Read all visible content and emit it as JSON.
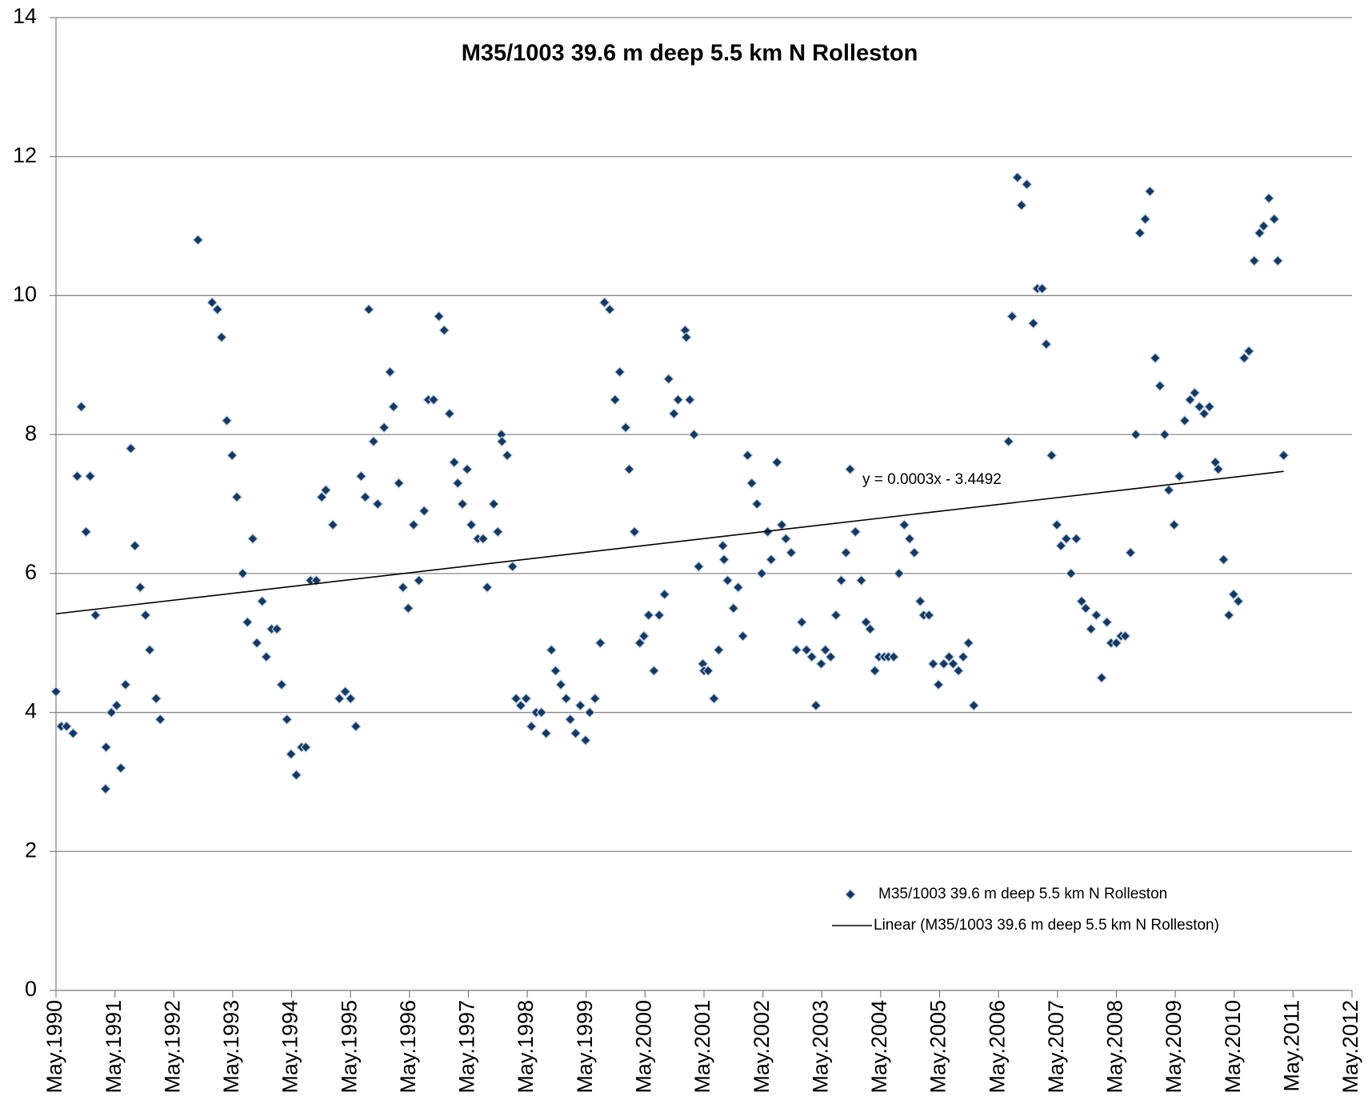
{
  "chart_data": {
    "type": "scatter",
    "title": "M35/1003   39.6 m deep   5.5 km N Rolleston",
    "annotation": "y = 0.0003x - 3.4492",
    "xlim": [
      1990.33,
      2012.33
    ],
    "xticks": [
      {
        "value": 1990.33,
        "label": "May.1990"
      },
      {
        "value": 1991.33,
        "label": "May.1991"
      },
      {
        "value": 1992.33,
        "label": "May.1992"
      },
      {
        "value": 1993.33,
        "label": "May.1993"
      },
      {
        "value": 1994.33,
        "label": "May.1994"
      },
      {
        "value": 1995.33,
        "label": "May.1995"
      },
      {
        "value": 1996.33,
        "label": "May.1996"
      },
      {
        "value": 1997.33,
        "label": "May.1997"
      },
      {
        "value": 1998.33,
        "label": "May.1998"
      },
      {
        "value": 1999.33,
        "label": "May.1999"
      },
      {
        "value": 2000.33,
        "label": "May.2000"
      },
      {
        "value": 2001.33,
        "label": "May.2001"
      },
      {
        "value": 2002.33,
        "label": "May.2002"
      },
      {
        "value": 2003.33,
        "label": "May.2003"
      },
      {
        "value": 2004.33,
        "label": "May.2004"
      },
      {
        "value": 2005.33,
        "label": "May.2005"
      },
      {
        "value": 2006.33,
        "label": "May.2006"
      },
      {
        "value": 2007.33,
        "label": "May.2007"
      },
      {
        "value": 2008.33,
        "label": "May.2008"
      },
      {
        "value": 2009.33,
        "label": "May.2009"
      },
      {
        "value": 2010.33,
        "label": "May.2010"
      },
      {
        "value": 2011.33,
        "label": "May.2011"
      },
      {
        "value": 2012.33,
        "label": "May.2012"
      }
    ],
    "ylim": [
      0,
      14
    ],
    "yticks": [
      0,
      2,
      4,
      6,
      8,
      10,
      12,
      14
    ],
    "grid": true,
    "legend": "lower right",
    "series": [
      {
        "name": "M35/1003   39.6 m deep   5.5 km N Rolleston",
        "mode": "markers",
        "color": "#17375e",
        "x": [
          1990.33,
          1990.42,
          1990.51,
          1990.62,
          1990.69,
          1990.76,
          1990.84,
          1990.91,
          1991.0,
          1991.17,
          1991.18,
          1991.27,
          1991.36,
          1991.43,
          1991.51,
          1991.6,
          1991.67,
          1991.76,
          1991.85,
          1991.92,
          1992.03,
          1992.1,
          1992.74,
          1992.98,
          1993.07,
          1993.14,
          1993.23,
          1993.32,
          1993.4,
          1993.5,
          1993.58,
          1993.67,
          1993.74,
          1993.83,
          1993.9,
          1993.99,
          1994.08,
          1994.16,
          1994.25,
          1994.32,
          1994.41,
          1994.5,
          1994.57,
          1994.65,
          1994.75,
          1994.84,
          1994.91,
          1995.03,
          1995.14,
          1995.24,
          1995.33,
          1995.42,
          1995.51,
          1995.58,
          1995.64,
          1995.72,
          1995.79,
          1995.9,
          1996.0,
          1996.06,
          1996.15,
          1996.22,
          1996.31,
          1996.4,
          1996.49,
          1996.58,
          1996.65,
          1996.74,
          1996.83,
          1996.92,
          1997.01,
          1997.09,
          1997.15,
          1997.23,
          1997.31,
          1997.38,
          1997.49,
          1997.58,
          1997.65,
          1997.76,
          1997.83,
          1997.89,
          1997.9,
          1997.99,
          1998.08,
          1998.14,
          1998.22,
          1998.31,
          1998.4,
          1998.48,
          1998.57,
          1998.65,
          1998.74,
          1998.81,
          1998.9,
          1998.99,
          1999.06,
          1999.15,
          1999.23,
          1999.32,
          1999.39,
          1999.48,
          1999.57,
          1999.64,
          1999.73,
          1999.82,
          1999.9,
          2000.0,
          2000.06,
          2000.15,
          2000.24,
          2000.31,
          2000.39,
          2000.48,
          2000.57,
          2000.66,
          2000.73,
          2000.82,
          2000.89,
          2001.01,
          2001.03,
          2001.09,
          2001.16,
          2001.24,
          2001.31,
          2001.33,
          2001.4,
          2001.5,
          2001.58,
          2001.65,
          2001.67,
          2001.73,
          2001.83,
          2001.91,
          2001.99,
          2002.07,
          2002.14,
          2002.23,
          2002.31,
          2002.41,
          2002.47,
          2002.57,
          2002.65,
          2002.72,
          2002.81,
          2002.9,
          2002.99,
          2003.07,
          2003.16,
          2003.23,
          2003.32,
          2003.39,
          2003.48,
          2003.57,
          2003.66,
          2003.74,
          2003.81,
          2003.9,
          2004.0,
          2004.08,
          2004.15,
          2004.23,
          2004.3,
          2004.39,
          2004.46,
          2004.55,
          2004.64,
          2004.73,
          2004.82,
          2004.9,
          2005.0,
          2005.06,
          2005.15,
          2005.22,
          2005.31,
          2005.4,
          2005.49,
          2005.56,
          2005.65,
          2005.73,
          2005.82,
          2005.91,
          2006.5,
          2006.56,
          2006.65,
          2006.72,
          2006.81,
          2006.92,
          2006.99,
          2007.07,
          2007.14,
          2007.23,
          2007.32,
          2007.39,
          2007.48,
          2007.56,
          2007.65,
          2007.74,
          2007.81,
          2007.9,
          2007.99,
          2008.08,
          2008.17,
          2008.24,
          2008.33,
          2008.41,
          2008.48,
          2008.57,
          2008.66,
          2008.73,
          2008.82,
          2008.9,
          2008.99,
          2009.07,
          2009.15,
          2009.22,
          2009.31,
          2009.4,
          2009.49,
          2009.58,
          2009.66,
          2009.74,
          2009.82,
          2009.91,
          2010.01,
          2010.06,
          2010.15,
          2010.24,
          2010.32,
          2010.4,
          2010.5,
          2010.58,
          2010.67,
          2010.76,
          2010.83,
          2010.92,
          2011.01,
          2011.07,
          2011.17
        ],
        "values": [
          4.3,
          3.8,
          3.8,
          3.7,
          7.4,
          8.4,
          6.6,
          7.4,
          5.4,
          2.9,
          3.5,
          4.0,
          4.1,
          3.2,
          4.4,
          7.8,
          6.4,
          5.8,
          5.4,
          4.9,
          4.2,
          3.9,
          10.8,
          9.9,
          9.8,
          9.4,
          8.2,
          7.7,
          7.1,
          6.0,
          5.3,
          6.5,
          5.0,
          5.6,
          4.8,
          5.2,
          5.2,
          4.4,
          3.9,
          3.4,
          3.1,
          3.5,
          3.5,
          5.9,
          5.9,
          7.1,
          7.2,
          6.7,
          4.2,
          4.3,
          4.2,
          3.8,
          7.4,
          7.1,
          9.8,
          7.9,
          7.0,
          8.1,
          8.9,
          8.4,
          7.3,
          5.8,
          5.5,
          6.7,
          5.9,
          6.9,
          8.5,
          8.5,
          9.7,
          9.5,
          8.3,
          7.6,
          7.3,
          7.0,
          7.5,
          6.7,
          6.5,
          6.5,
          5.8,
          7.0,
          6.6,
          8.0,
          7.9,
          7.7,
          6.1,
          4.2,
          4.1,
          4.2,
          3.8,
          4.0,
          4.0,
          3.7,
          4.9,
          4.6,
          4.4,
          4.2,
          3.9,
          3.7,
          4.1,
          3.6,
          4.0,
          4.2,
          5.0,
          9.9,
          9.8,
          8.5,
          8.9,
          8.1,
          7.5,
          6.6,
          5.0,
          5.1,
          5.4,
          4.6,
          5.4,
          5.7,
          8.8,
          8.3,
          8.5,
          9.5,
          9.4,
          8.5,
          8.0,
          6.1,
          4.7,
          4.6,
          4.6,
          4.2,
          4.9,
          6.4,
          6.2,
          5.9,
          5.5,
          5.8,
          5.1,
          7.7,
          7.3,
          7.0,
          6.0,
          6.6,
          6.2,
          7.6,
          6.7,
          6.5,
          6.3,
          4.9,
          5.3,
          4.9,
          4.8,
          4.1,
          4.7,
          4.9,
          4.8,
          5.4,
          5.9,
          6.3,
          7.5,
          6.6,
          5.9,
          5.3,
          5.2,
          4.6,
          4.8,
          4.8,
          4.8,
          4.8,
          6.0,
          6.7,
          6.5,
          6.3,
          5.6,
          5.4,
          5.4,
          4.7,
          4.4,
          4.7,
          4.8,
          4.7,
          4.6,
          4.8,
          5.0,
          4.1,
          7.9,
          9.7,
          11.7,
          11.3,
          11.6,
          9.6,
          10.1,
          10.1,
          9.3,
          7.7,
          6.7,
          6.4,
          6.5,
          6.0,
          6.5,
          5.6,
          5.5,
          5.2,
          5.4,
          4.5,
          5.3,
          5.0,
          5.0,
          5.1,
          5.1,
          6.3,
          8.0,
          10.9,
          11.1,
          11.5,
          9.1,
          8.7,
          8.0,
          7.2,
          6.7,
          7.4,
          8.2,
          8.5,
          8.6,
          8.4,
          8.3,
          8.4,
          7.6,
          7.5,
          6.2,
          5.4,
          5.7,
          5.6,
          9.1,
          9.2,
          10.5,
          10.9,
          11.0,
          11.4,
          11.1,
          10.5,
          7.7
        ]
      },
      {
        "name": "Linear (M35/1003   39.6 m deep   5.5 km N Rolleston)",
        "mode": "line",
        "color": "#000000",
        "x": [
          1990.33,
          2011.17
        ],
        "values": [
          5.42,
          7.47
        ]
      }
    ]
  }
}
